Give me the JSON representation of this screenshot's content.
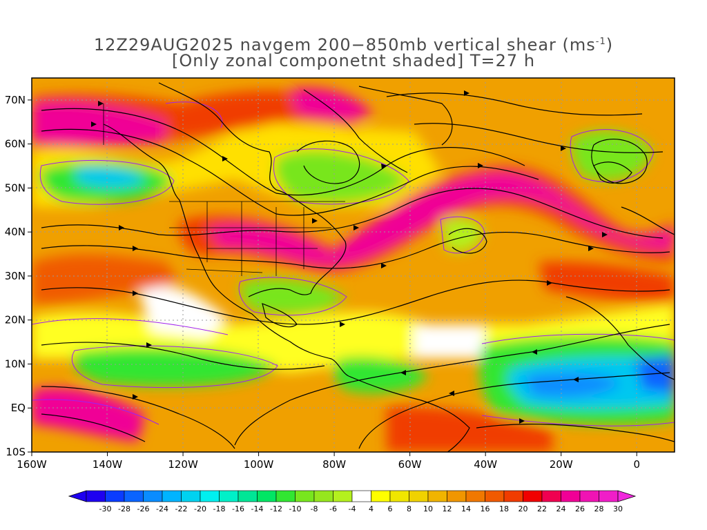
{
  "title": {
    "line1_prefix": "12Z29AUG2025 navgem 200−850mb vertical shear (ms",
    "line1_sup": "-1",
    "line1_suffix": ")",
    "line2": "[Only zonal componetnt shaded] T=27 h"
  },
  "chart_data": {
    "type": "heatmap",
    "title": "12Z29AUG2025 navgem 200−850mb vertical shear (ms⁻¹) [Only zonal componetnt shaded] T=27 h",
    "x_ticks": [
      "160W",
      "140W",
      "120W",
      "100W",
      "80W",
      "60W",
      "40W",
      "20W",
      "0"
    ],
    "x_tick_values": [
      -160,
      -140,
      -120,
      -100,
      -80,
      -60,
      -40,
      -20,
      0
    ],
    "y_ticks": [
      "10S",
      "EQ",
      "10N",
      "20N",
      "30N",
      "40N",
      "50N",
      "60N",
      "70N"
    ],
    "y_tick_values": [
      -10,
      0,
      10,
      20,
      30,
      40,
      50,
      60,
      70
    ],
    "xlim": [
      -160,
      10
    ],
    "ylim": [
      -10,
      75
    ],
    "colorbar": {
      "labels": [
        "-30",
        "-28",
        "-26",
        "-24",
        "-22",
        "-20",
        "-18",
        "-16",
        "-14",
        "-12",
        "-10",
        "-8",
        "-6",
        "-4",
        "4",
        "6",
        "8",
        "10",
        "12",
        "14",
        "16",
        "18",
        "20",
        "22",
        "24",
        "26",
        "28",
        "30"
      ],
      "colors": [
        "#1e00f0",
        "#0a3cff",
        "#0a64ff",
        "#0a8cff",
        "#00b4ff",
        "#00d2f0",
        "#00f0f0",
        "#00f0c8",
        "#00e696",
        "#00e664",
        "#32e632",
        "#78e61e",
        "#96e61e",
        "#b4f01e",
        "#ffffff",
        "#ffff00",
        "#f0e600",
        "#f0d200",
        "#f0b400",
        "#f09600",
        "#f07800",
        "#f05a00",
        "#f03c00",
        "#f00000",
        "#f00050",
        "#f00096",
        "#f014b4",
        "#f01ec8"
      ],
      "over_color": "#f028dc",
      "under_color": "#1e00f0"
    },
    "jet_core_color": "#f01496",
    "coast_color": "#000000",
    "contour_color": "#a020f0",
    "grid": true
  }
}
